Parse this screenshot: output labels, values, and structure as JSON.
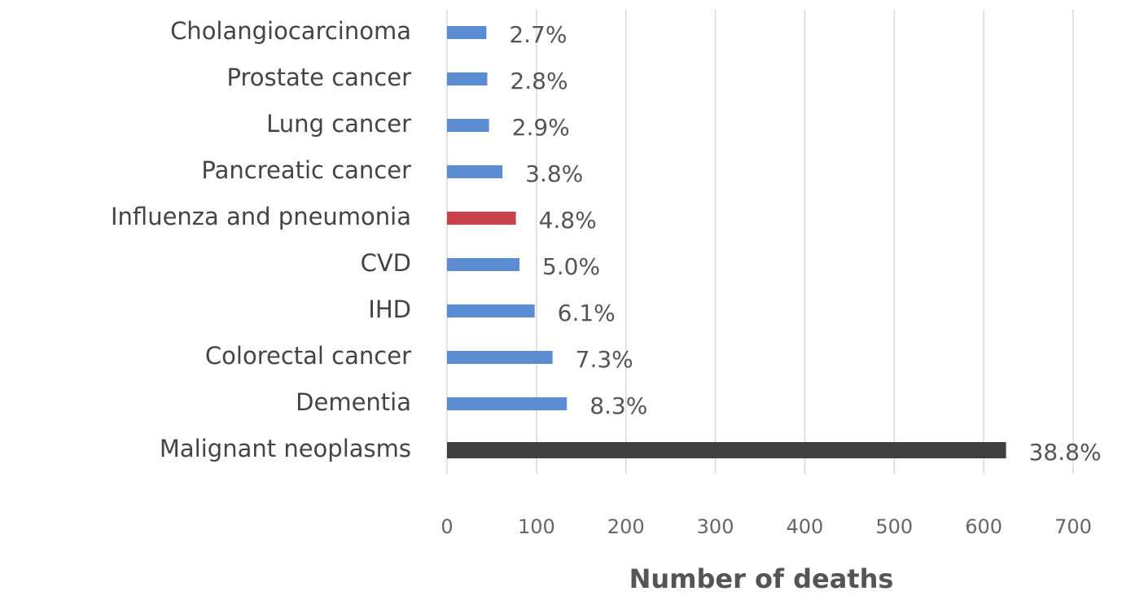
{
  "chart_data": {
    "type": "bar",
    "orientation": "horizontal",
    "categories": [
      "Cholangiocarcinoma",
      "Prostate cancer",
      "Lung cancer",
      "Pancreatic cancer",
      "Influenza and pneumonia",
      "CVD",
      "IHD",
      "Colorectal cancer",
      "Dementia",
      "Malignant neoplasms"
    ],
    "values": [
      44,
      45,
      47,
      62,
      77,
      81,
      98,
      118,
      134,
      625
    ],
    "value_labels": [
      "2.7%",
      "2.8%",
      "2.9%",
      "3.8%",
      "4.8%",
      "5.0%",
      "6.1%",
      "7.3%",
      "8.3%",
      "38.8%"
    ],
    "colors": [
      "#5b8bd0",
      "#5b8bd0",
      "#5b8bd0",
      "#5b8bd0",
      "#c8414b",
      "#5b8bd0",
      "#5b8bd0",
      "#5b8bd0",
      "#5b8bd0",
      "#404040"
    ],
    "xlabel": "Number of deaths",
    "xlim": [
      0,
      700
    ],
    "xticks": [
      0,
      100,
      200,
      300,
      400,
      500,
      600,
      700
    ],
    "grid": true
  }
}
